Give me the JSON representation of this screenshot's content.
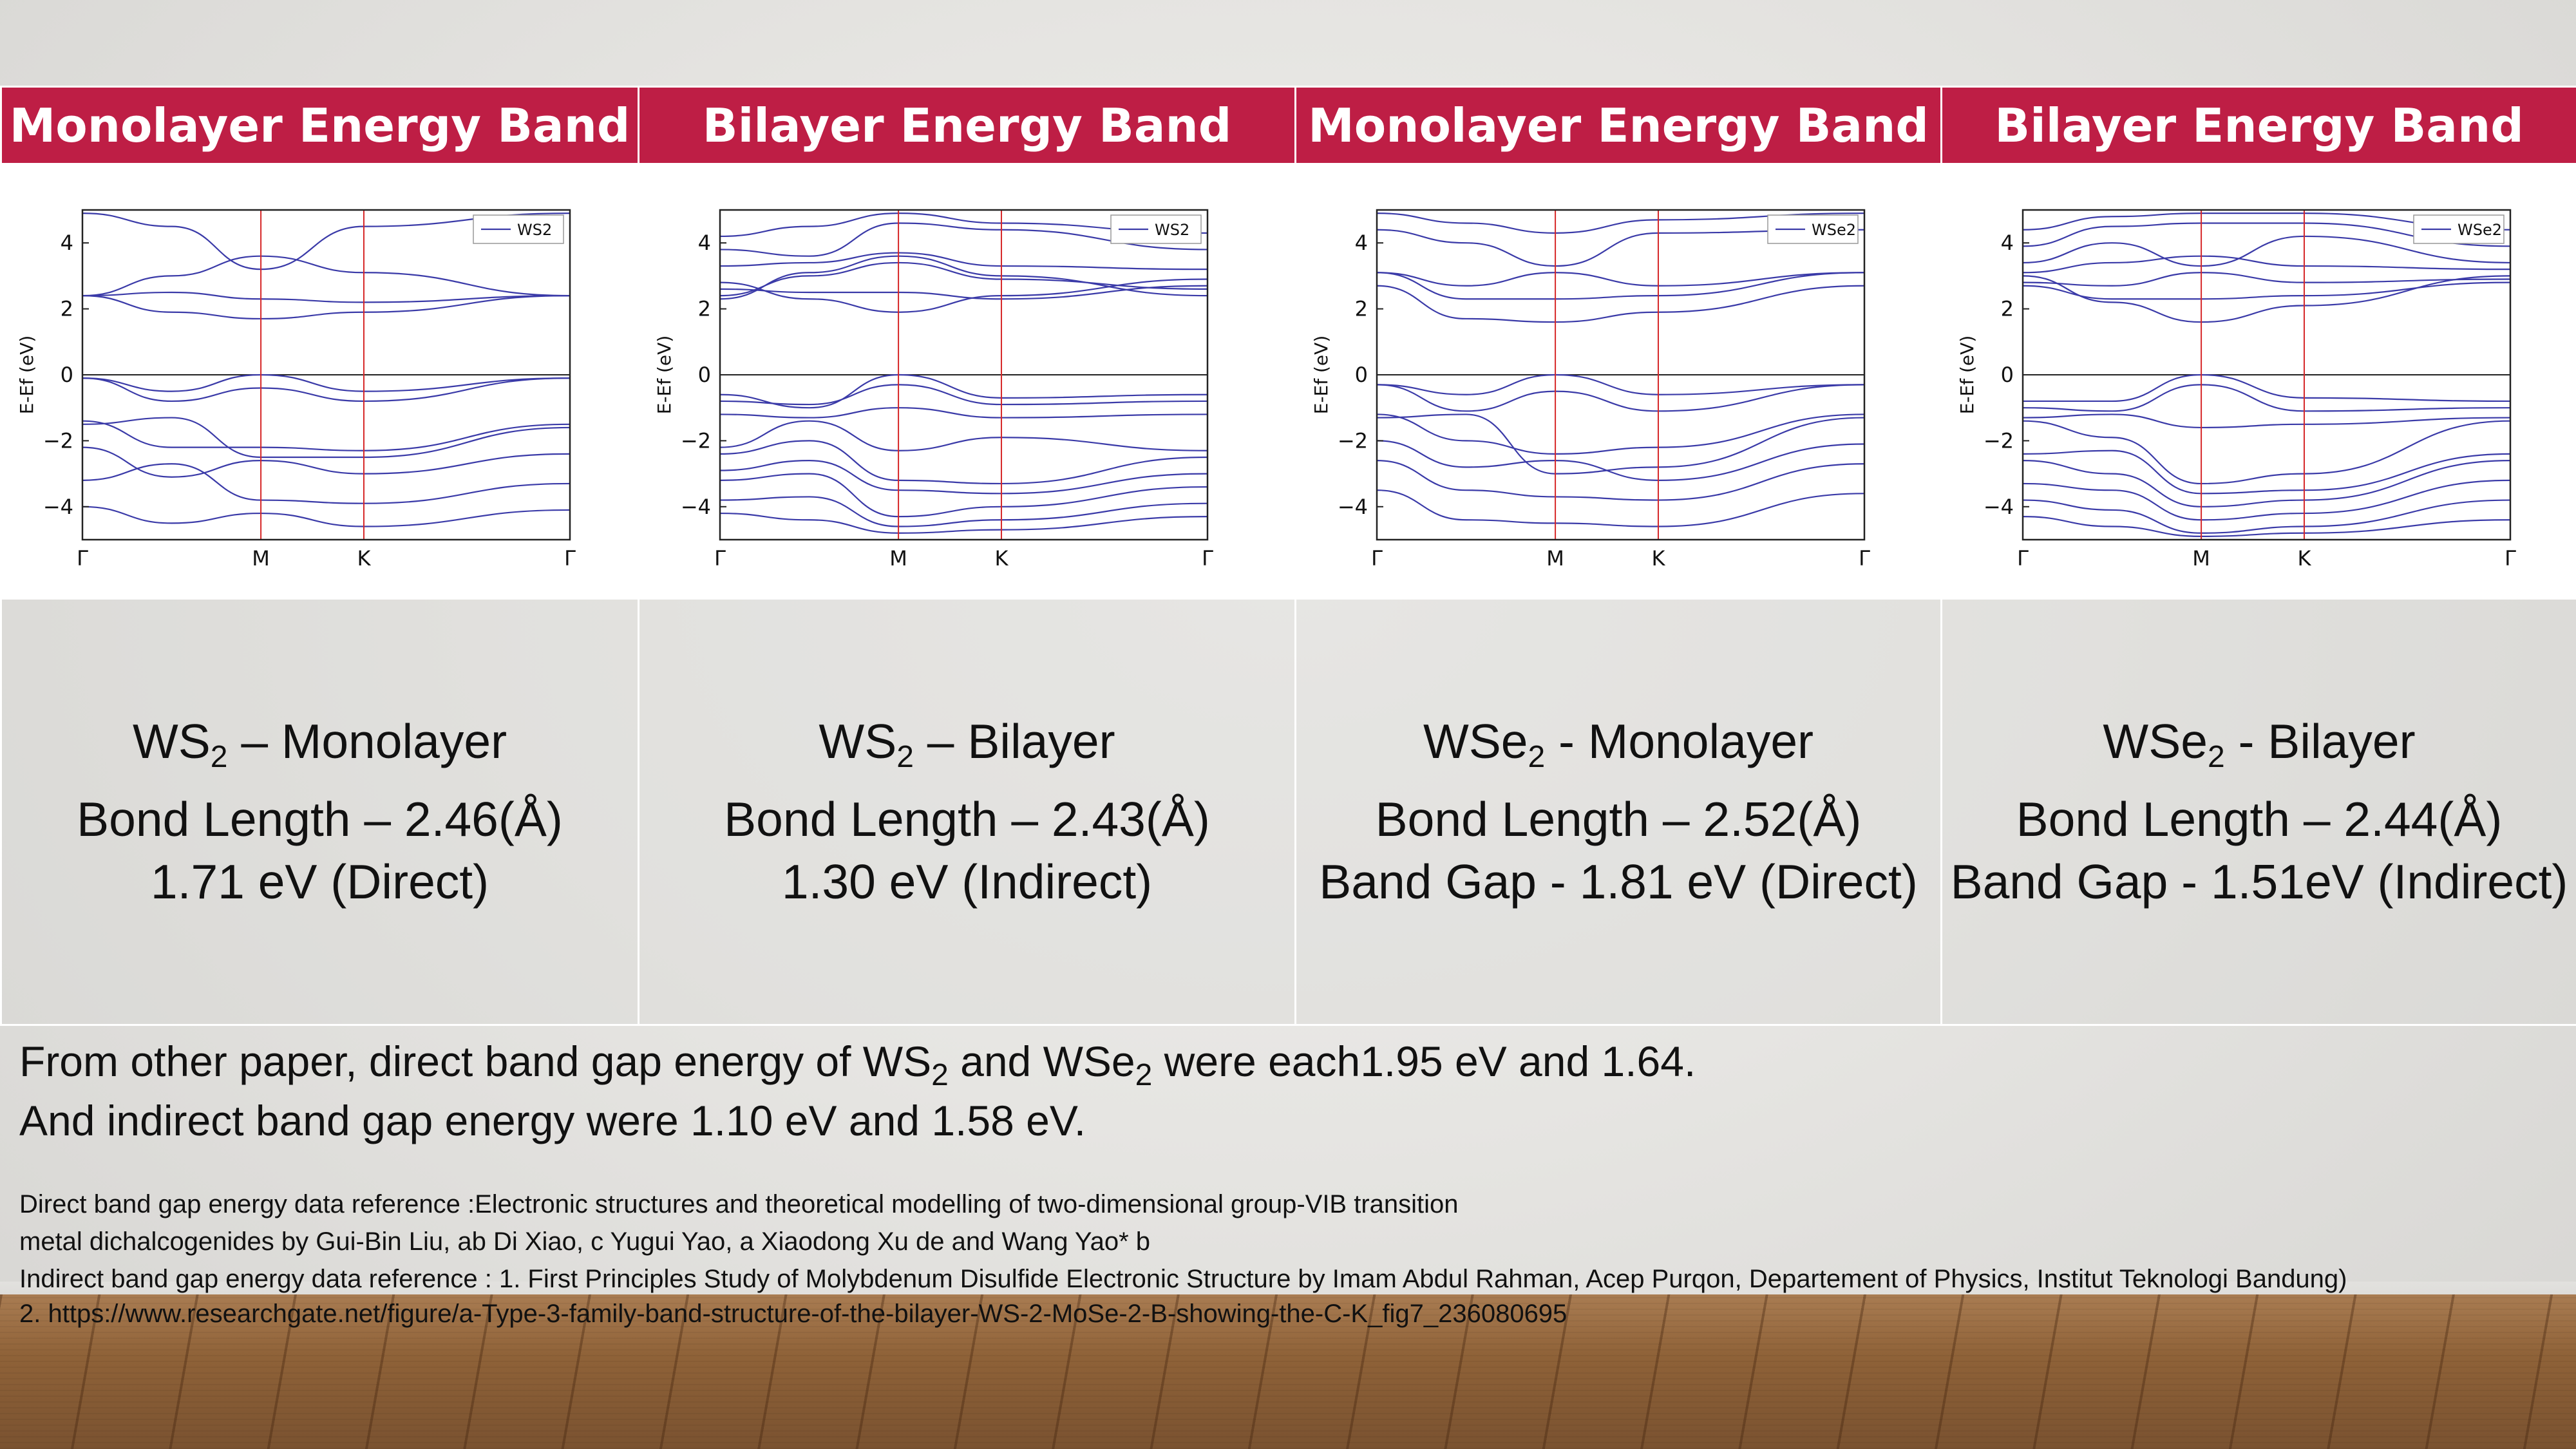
{
  "header_cells": [
    "Monolayer Energy Band",
    "Bilayer Energy Band",
    "Monolayer Energy Band",
    "Bilayer Energy Band"
  ],
  "info_cells": [
    {
      "material": "WS",
      "sub": "2",
      "rest": " – Monolayer",
      "bond": "Bond Length – 2.46(Å)",
      "gap": "1.71 eV (Direct)"
    },
    {
      "material": "WS",
      "sub": "2",
      "rest": " – Bilayer",
      "bond": "Bond Length – 2.43(Å)",
      "gap": "1.30 eV (Indirect)"
    },
    {
      "material": "WSe",
      "sub": "2",
      "rest": " - Monolayer",
      "bond": "Bond Length – 2.52(Å)",
      "gap": "Band Gap - 1.81 eV (Direct)"
    },
    {
      "material": "WSe",
      "sub": "2",
      "rest": " - Bilayer",
      "bond": "Bond Length – 2.44(Å)",
      "gap": "Band Gap - 1.51eV (Indirect)"
    }
  ],
  "notes": {
    "line1_a": "From other paper, direct band gap energy of  WS",
    "line1_sub1": "2",
    "line1_b": " and WSe",
    "line1_sub2": "2",
    "line1_c": " were each1.95 eV and 1.64.",
    "line2": "And indirect band gap energy were 1.10 eV and 1.58 eV."
  },
  "references": [
    "Direct band gap energy data reference :Electronic structures and theoretical modelling of two-dimensional group-VIB transition",
    "metal dichalcogenides by Gui-Bin Liu, ab Di Xiao, c Yugui Yao, a Xiaodong Xu de and Wang Yao* b",
    "Indirect band gap energy data reference : 1. First Principles Study of Molybdenum Disulfide Electronic Structure by Imam Abdul Rahman, Acep Purqon, Departement of Physics, Institut Teknologi Bandung)",
    "2. https://www.researchgate.net/figure/a-Type-3-family-band-structure-of-the-bilayer-WS-2-MoSe-2-B-showing-the-C-K_fig7_236080695"
  ],
  "colors": {
    "header_bg": "#be1e45",
    "band_line": "#3a3aa8",
    "kpoint_line": "#d62728"
  },
  "chart_data": [
    {
      "type": "line",
      "legend": "WS2",
      "legend_position": "top-right",
      "ylabel": "E-Ef (eV)",
      "ylim": [
        -5,
        5
      ],
      "yticks": [
        -4,
        -2,
        0,
        2,
        4
      ],
      "x_tick_labels": [
        "Γ",
        "M",
        "K",
        "Γ"
      ],
      "kpoints": [
        0,
        1,
        1.577,
        2.732
      ],
      "series": [
        {
          "y": [
            2.4,
            3.0,
            3.6,
            3.1,
            2.4
          ]
        },
        {
          "y": [
            2.4,
            2.5,
            2.3,
            2.2,
            2.4
          ]
        },
        {
          "y": [
            2.4,
            1.9,
            1.7,
            1.9,
            2.4
          ]
        },
        {
          "y": [
            4.9,
            4.5,
            3.2,
            4.5,
            4.9
          ]
        },
        {
          "y": [
            -0.1,
            -0.5,
            0.0,
            -0.5,
            -0.1
          ]
        },
        {
          "y": [
            -0.1,
            -0.8,
            -0.4,
            -0.8,
            -0.1
          ]
        },
        {
          "y": [
            -1.4,
            -2.2,
            -2.2,
            -2.3,
            -1.5
          ]
        },
        {
          "y": [
            -1.5,
            -1.3,
            -2.5,
            -2.5,
            -1.6
          ]
        },
        {
          "y": [
            -2.2,
            -3.1,
            -2.6,
            -3.0,
            -2.4
          ]
        },
        {
          "y": [
            -3.2,
            -2.7,
            -3.8,
            -3.9,
            -3.3
          ]
        },
        {
          "y": [
            -4.0,
            -4.5,
            -4.2,
            -4.6,
            -4.1
          ]
        }
      ]
    },
    {
      "type": "line",
      "legend": "WS2",
      "legend_position": "top-right",
      "ylabel": "E-Ef (eV)",
      "ylim": [
        -5,
        5
      ],
      "yticks": [
        -4,
        -2,
        0,
        2,
        4
      ],
      "x_tick_labels": [
        "Γ",
        "M",
        "K",
        "Γ"
      ],
      "kpoints": [
        0,
        1,
        1.577,
        2.732
      ],
      "series": [
        {
          "y": [
            2.3,
            3.1,
            3.6,
            3.0,
            2.4
          ]
        },
        {
          "y": [
            2.4,
            3.0,
            3.4,
            2.9,
            2.6
          ]
        },
        {
          "y": [
            2.6,
            2.5,
            2.5,
            2.3,
            2.7
          ]
        },
        {
          "y": [
            2.8,
            2.3,
            1.9,
            2.4,
            2.9
          ]
        },
        {
          "y": [
            3.3,
            3.4,
            3.7,
            3.3,
            3.2
          ]
        },
        {
          "y": [
            3.8,
            3.6,
            4.6,
            4.4,
            3.8
          ]
        },
        {
          "y": [
            4.2,
            4.5,
            4.9,
            4.6,
            4.3
          ]
        },
        {
          "y": [
            -0.6,
            -1.0,
            0.0,
            -0.7,
            -0.6
          ]
        },
        {
          "y": [
            -0.8,
            -0.9,
            -0.3,
            -0.9,
            -0.8
          ]
        },
        {
          "y": [
            -1.2,
            -1.3,
            -1.0,
            -1.3,
            -1.2
          ]
        },
        {
          "y": [
            -2.2,
            -1.4,
            -2.3,
            -1.9,
            -2.3
          ]
        },
        {
          "y": [
            -2.4,
            -2.0,
            -3.2,
            -3.3,
            -2.5
          ]
        },
        {
          "y": [
            -2.9,
            -2.6,
            -3.5,
            -3.6,
            -3.0
          ]
        },
        {
          "y": [
            -3.2,
            -3.0,
            -4.3,
            -4.0,
            -3.4
          ]
        },
        {
          "y": [
            -3.8,
            -3.7,
            -4.6,
            -4.4,
            -3.9
          ]
        },
        {
          "y": [
            -4.2,
            -4.4,
            -4.8,
            -4.7,
            -4.3
          ]
        }
      ]
    },
    {
      "type": "line",
      "legend": "WSe2",
      "legend_position": "top-right",
      "ylabel": "E-Ef (eV)",
      "ylim": [
        -5,
        5
      ],
      "yticks": [
        -4,
        -2,
        0,
        2,
        4
      ],
      "x_tick_labels": [
        "Γ",
        "M",
        "K",
        "Γ"
      ],
      "kpoints": [
        0,
        1,
        1.577,
        2.732
      ],
      "series": [
        {
          "y": [
            3.1,
            2.7,
            3.1,
            2.7,
            3.1
          ]
        },
        {
          "y": [
            3.1,
            2.3,
            2.3,
            2.4,
            3.1
          ]
        },
        {
          "y": [
            2.7,
            1.7,
            1.6,
            1.9,
            2.7
          ]
        },
        {
          "y": [
            4.4,
            4.0,
            3.3,
            4.3,
            4.4
          ]
        },
        {
          "y": [
            4.9,
            4.6,
            4.3,
            4.7,
            4.9
          ]
        },
        {
          "y": [
            -0.3,
            -0.6,
            0.0,
            -0.6,
            -0.3
          ]
        },
        {
          "y": [
            -0.3,
            -1.1,
            -0.5,
            -1.1,
            -0.3
          ]
        },
        {
          "y": [
            -1.2,
            -2.0,
            -2.4,
            -2.2,
            -1.2
          ]
        },
        {
          "y": [
            -1.3,
            -1.2,
            -3.0,
            -2.8,
            -1.3
          ]
        },
        {
          "y": [
            -2.0,
            -2.8,
            -2.6,
            -3.2,
            -2.1
          ]
        },
        {
          "y": [
            -2.6,
            -3.5,
            -3.7,
            -3.8,
            -2.7
          ]
        },
        {
          "y": [
            -3.5,
            -4.4,
            -4.5,
            -4.6,
            -3.6
          ]
        }
      ]
    },
    {
      "type": "line",
      "legend": "WSe2",
      "legend_position": "top-right",
      "ylabel": "E-Ef (eV)",
      "ylim": [
        -5,
        5
      ],
      "yticks": [
        -4,
        -2,
        0,
        2,
        4
      ],
      "x_tick_labels": [
        "Γ",
        "M",
        "K",
        "Γ"
      ],
      "kpoints": [
        0,
        1,
        1.577,
        2.732
      ],
      "series": [
        {
          "y": [
            2.7,
            2.3,
            2.3,
            2.4,
            2.8
          ]
        },
        {
          "y": [
            2.8,
            2.7,
            3.1,
            2.8,
            2.9
          ]
        },
        {
          "y": [
            3.0,
            2.2,
            1.6,
            2.1,
            3.0
          ]
        },
        {
          "y": [
            3.1,
            3.4,
            3.6,
            3.3,
            3.2
          ]
        },
        {
          "y": [
            3.4,
            4.0,
            3.3,
            4.2,
            3.4
          ]
        },
        {
          "y": [
            3.9,
            4.5,
            4.6,
            4.6,
            3.9
          ]
        },
        {
          "y": [
            4.4,
            4.8,
            4.9,
            4.9,
            4.4
          ]
        },
        {
          "y": [
            -0.8,
            -0.8,
            0.0,
            -0.7,
            -0.8
          ]
        },
        {
          "y": [
            -1.0,
            -1.1,
            -0.3,
            -1.1,
            -1.0
          ]
        },
        {
          "y": [
            -1.3,
            -1.2,
            -1.6,
            -1.5,
            -1.3
          ]
        },
        {
          "y": [
            -1.4,
            -1.9,
            -3.3,
            -3.0,
            -1.4
          ]
        },
        {
          "y": [
            -2.4,
            -2.3,
            -3.6,
            -3.5,
            -2.4
          ]
        },
        {
          "y": [
            -2.6,
            -3.0,
            -4.0,
            -3.8,
            -2.6
          ]
        },
        {
          "y": [
            -3.3,
            -3.5,
            -4.4,
            -4.2,
            -3.2
          ]
        },
        {
          "y": [
            -3.8,
            -4.1,
            -4.8,
            -4.6,
            -3.8
          ]
        },
        {
          "y": [
            -4.3,
            -4.6,
            -4.9,
            -4.8,
            -4.4
          ]
        }
      ]
    }
  ]
}
